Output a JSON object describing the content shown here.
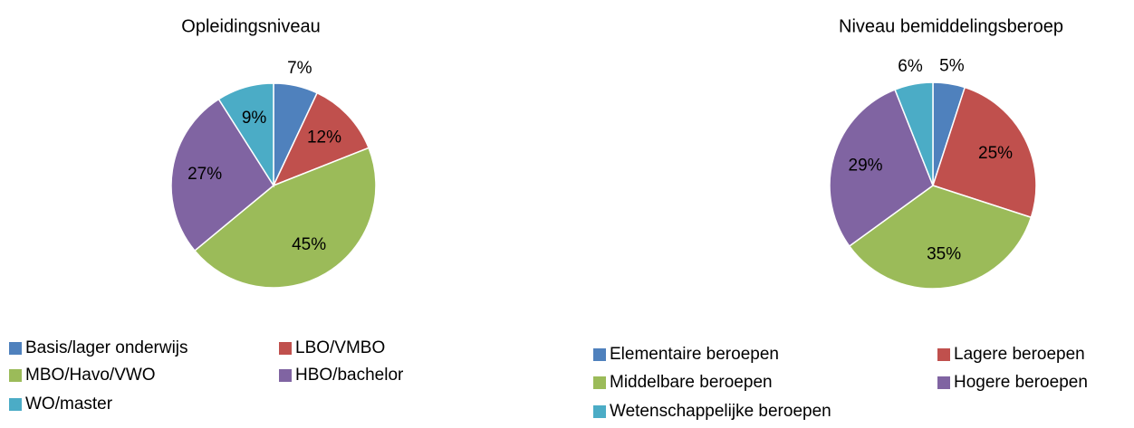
{
  "chart_data": [
    {
      "type": "pie",
      "title": "Opleidingsniveau",
      "categories": [
        "Basis/lager onderwijs",
        "LBO/VMBO",
        "MBO/Havo/VWO",
        "HBO/bachelor",
        "WO/master"
      ],
      "values": [
        7,
        12,
        45,
        27,
        9
      ],
      "value_labels": [
        "7%",
        "12%",
        "45%",
        "27%",
        "9%"
      ],
      "colors": [
        "#4f81bd",
        "#c0504d",
        "#9bbb59",
        "#8064a2",
        "#4bacc6"
      ],
      "legend": "bottom"
    },
    {
      "type": "pie",
      "title": "Niveau bemiddelingsberoep",
      "categories": [
        "Elementaire beroepen",
        "Lagere beroepen",
        "Middelbare beroepen",
        "Hogere beroepen",
        "Wetenschappelijke beroepen"
      ],
      "values": [
        5,
        25,
        35,
        29,
        6
      ],
      "value_labels": [
        "5%",
        "25%",
        "35%",
        "29%",
        "6%"
      ],
      "colors": [
        "#4f81bd",
        "#c0504d",
        "#9bbb59",
        "#8064a2",
        "#4bacc6"
      ],
      "legend": "bottom"
    }
  ]
}
